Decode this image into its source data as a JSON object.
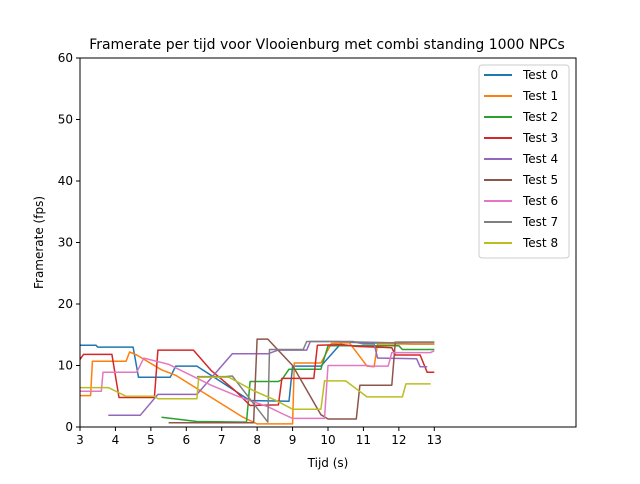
{
  "chart_data": {
    "type": "line",
    "title": "Framerate per tijd voor Vlooienburg met  combi standing 1000 NPCs",
    "xlabel": "Tijd (s)",
    "ylabel": "Framerate (fps)",
    "xlim": [
      3,
      17
    ],
    "ylim": [
      0,
      60
    ],
    "x_ticks": [
      "3",
      "4",
      "5",
      "6",
      "7",
      "8",
      "9",
      "10",
      "11",
      "12",
      "13"
    ],
    "y_ticks": [
      "0",
      "10",
      "20",
      "30",
      "40",
      "50",
      "60"
    ],
    "grid": false,
    "legend_position": "top-right",
    "series": [
      {
        "name": "Test 0",
        "color": "#1f77b4",
        "points": [
          [
            3.0,
            13.3
          ],
          [
            3.45,
            13.3
          ],
          [
            3.5,
            13.0
          ],
          [
            4.5,
            13.0
          ],
          [
            4.65,
            8.1
          ],
          [
            5.55,
            8.1
          ],
          [
            5.7,
            9.9
          ],
          [
            6.3,
            9.9
          ],
          [
            7.8,
            4.3
          ],
          [
            8.9,
            4.2
          ],
          [
            9.0,
            9.9
          ],
          [
            9.8,
            9.9
          ],
          [
            10.4,
            13.8
          ],
          [
            12.4,
            13.5
          ],
          [
            13.0,
            13.5
          ]
        ]
      },
      {
        "name": "Test 1",
        "color": "#ff7f0e",
        "points": [
          [
            3.0,
            5.1
          ],
          [
            3.3,
            5.1
          ],
          [
            3.35,
            10.7
          ],
          [
            4.3,
            10.7
          ],
          [
            4.4,
            12.2
          ],
          [
            4.6,
            11.7
          ],
          [
            5.3,
            9.3
          ],
          [
            5.7,
            8.4
          ],
          [
            7.6,
            1.6
          ],
          [
            8.0,
            0.5
          ],
          [
            9.0,
            0.5
          ],
          [
            9.05,
            10.4
          ],
          [
            9.8,
            10.4
          ],
          [
            10.1,
            13.6
          ],
          [
            10.6,
            13.7
          ],
          [
            11.1,
            9.9
          ],
          [
            11.3,
            9.8
          ],
          [
            11.4,
            13.5
          ],
          [
            13.0,
            13.5
          ]
        ]
      },
      {
        "name": "Test 2",
        "color": "#2ca02c",
        "points": [
          [
            5.3,
            1.6
          ],
          [
            6.3,
            0.9
          ],
          [
            7.7,
            0.8
          ],
          [
            7.8,
            7.4
          ],
          [
            8.6,
            7.4
          ],
          [
            8.7,
            7.7
          ],
          [
            8.9,
            9.4
          ],
          [
            9.8,
            9.4
          ],
          [
            10.0,
            13.2
          ],
          [
            12.0,
            13.2
          ],
          [
            12.1,
            12.6
          ],
          [
            13.0,
            12.6
          ]
        ]
      },
      {
        "name": "Test 3",
        "color": "#d62728",
        "points": [
          [
            3.0,
            11.0
          ],
          [
            3.1,
            11.8
          ],
          [
            3.9,
            11.8
          ],
          [
            4.1,
            4.8
          ],
          [
            5.1,
            4.8
          ],
          [
            5.2,
            12.5
          ],
          [
            6.2,
            12.5
          ],
          [
            6.7,
            9.2
          ],
          [
            7.4,
            5.8
          ],
          [
            7.8,
            3.5
          ],
          [
            8.6,
            3.6
          ],
          [
            8.7,
            7.9
          ],
          [
            9.6,
            7.9
          ],
          [
            9.7,
            13.3
          ],
          [
            10.4,
            13.4
          ],
          [
            10.8,
            13.1
          ],
          [
            11.8,
            12.9
          ],
          [
            11.9,
            11.7
          ],
          [
            12.6,
            11.7
          ],
          [
            12.8,
            8.9
          ],
          [
            13.0,
            8.9
          ]
        ]
      },
      {
        "name": "Test 4",
        "color": "#9467bd",
        "points": [
          [
            3.8,
            1.9
          ],
          [
            4.7,
            1.9
          ],
          [
            5.2,
            5.3
          ],
          [
            6.3,
            5.3
          ],
          [
            7.3,
            11.9
          ],
          [
            8.3,
            11.9
          ],
          [
            8.6,
            12.5
          ],
          [
            9.4,
            12.5
          ],
          [
            9.5,
            13.9
          ],
          [
            10.7,
            13.9
          ],
          [
            11.0,
            13.5
          ],
          [
            11.3,
            13.5
          ],
          [
            11.4,
            11.2
          ],
          [
            12.5,
            11.1
          ],
          [
            12.6,
            9.8
          ],
          [
            12.8,
            9.8
          ]
        ]
      },
      {
        "name": "Test 5",
        "color": "#8c564b",
        "points": [
          [
            5.5,
            0.7
          ],
          [
            7.9,
            0.7
          ],
          [
            8.0,
            14.3
          ],
          [
            8.3,
            14.3
          ],
          [
            9.0,
            10.0
          ],
          [
            9.8,
            2.0
          ],
          [
            10.0,
            1.3
          ],
          [
            10.8,
            1.3
          ],
          [
            10.9,
            6.8
          ],
          [
            11.8,
            6.8
          ],
          [
            11.9,
            13.8
          ],
          [
            13.0,
            13.8
          ]
        ]
      },
      {
        "name": "Test 6",
        "color": "#e377c2",
        "points": [
          [
            3.0,
            5.8
          ],
          [
            3.6,
            5.8
          ],
          [
            3.65,
            8.9
          ],
          [
            4.6,
            8.9
          ],
          [
            4.8,
            11.2
          ],
          [
            5.5,
            10.2
          ],
          [
            6.7,
            6.8
          ],
          [
            7.5,
            4.9
          ],
          [
            8.3,
            3.3
          ],
          [
            8.7,
            2.2
          ],
          [
            9.0,
            1.4
          ],
          [
            9.9,
            1.4
          ],
          [
            10.0,
            10.0
          ],
          [
            11.1,
            10.0
          ],
          [
            11.2,
            9.9
          ],
          [
            11.7,
            9.9
          ],
          [
            11.8,
            12.1
          ],
          [
            12.9,
            12.1
          ],
          [
            13.0,
            12.4
          ]
        ]
      },
      {
        "name": "Test 7",
        "color": "#7f7f7f",
        "points": [
          [
            6.3,
            8.2
          ],
          [
            7.1,
            8.2
          ],
          [
            7.3,
            8.3
          ],
          [
            8.3,
            0.8
          ],
          [
            8.35,
            12.6
          ],
          [
            9.3,
            12.6
          ],
          [
            9.4,
            13.9
          ],
          [
            10.2,
            13.9
          ],
          [
            11.8,
            13.7
          ],
          [
            12.0,
            13.8
          ],
          [
            13.0,
            13.8
          ]
        ]
      },
      {
        "name": "Test 8",
        "color": "#bcbd22",
        "points": [
          [
            3.0,
            6.4
          ],
          [
            3.8,
            6.4
          ],
          [
            4.3,
            5.0
          ],
          [
            5.1,
            5.0
          ],
          [
            5.2,
            4.6
          ],
          [
            6.3,
            4.6
          ],
          [
            6.35,
            8.1
          ],
          [
            7.2,
            8.1
          ],
          [
            7.9,
            5.9
          ],
          [
            8.5,
            4.4
          ],
          [
            9.0,
            2.9
          ],
          [
            9.8,
            2.9
          ],
          [
            9.9,
            7.5
          ],
          [
            10.5,
            7.5
          ],
          [
            11.1,
            4.9
          ],
          [
            12.1,
            4.9
          ],
          [
            12.2,
            7.0
          ],
          [
            12.9,
            7.0
          ]
        ]
      }
    ]
  }
}
